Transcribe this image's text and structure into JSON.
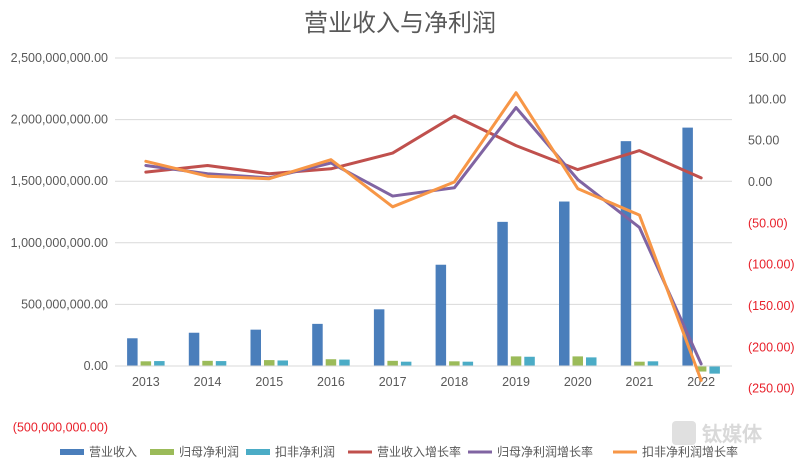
{
  "chart_data": {
    "type": "bar",
    "title": "营业收入与净利润",
    "categories": [
      "2013",
      "2014",
      "2015",
      "2016",
      "2017",
      "2018",
      "2019",
      "2020",
      "2021",
      "2022"
    ],
    "bar_series": [
      {
        "name": "营业收入",
        "color": "#4a7ebb",
        "axis": "left",
        "values": [
          225000000,
          270000000,
          295000000,
          342000000,
          460000000,
          822000000,
          1170000000,
          1335000000,
          1825000000,
          1935000000
        ]
      },
      {
        "name": "归母净利润",
        "color": "#9bbb59",
        "axis": "left",
        "values": [
          38000000,
          42000000,
          48000000,
          55000000,
          42000000,
          38000000,
          78000000,
          78000000,
          35000000,
          -45000000
        ]
      },
      {
        "name": "扣非净利润",
        "color": "#4bacc6",
        "axis": "left",
        "values": [
          40000000,
          40000000,
          45000000,
          52000000,
          35000000,
          35000000,
          75000000,
          70000000,
          38000000,
          -62000000
        ]
      }
    ],
    "line_series": [
      {
        "name": "营业收入增长率",
        "color": "#c0504d",
        "axis": "right",
        "values": [
          12,
          20,
          10,
          16,
          35,
          80,
          44,
          15,
          38,
          5
        ]
      },
      {
        "name": "归母净利润增长率",
        "color": "#8064a2",
        "axis": "right",
        "values": [
          20,
          10,
          5,
          23,
          -17,
          -7,
          90,
          3,
          -55,
          -220
        ]
      },
      {
        "name": "扣非净利润增长率",
        "color": "#f79646",
        "axis": "right",
        "values": [
          25,
          7,
          4,
          27,
          -30,
          0,
          108,
          -8,
          -40,
          -240
        ]
      }
    ],
    "left_axis": {
      "ylim": [
        -500000000,
        2500000000
      ],
      "ticks": [
        {
          "value": 2500000000,
          "label": "2,500,000,000.00"
        },
        {
          "value": 2000000000,
          "label": "2,000,000,000.00"
        },
        {
          "value": 1500000000,
          "label": "1,500,000,000.00"
        },
        {
          "value": 1000000000,
          "label": "1,000,000,000.00"
        },
        {
          "value": 500000000,
          "label": "500,000,000.00"
        },
        {
          "value": 0,
          "label": "0.00"
        },
        {
          "value": -500000000,
          "label": "(500,000,000.00)",
          "negative": true
        }
      ]
    },
    "right_axis": {
      "ylim": [
        -250,
        150
      ],
      "ticks": [
        {
          "value": 150,
          "label": "150.00"
        },
        {
          "value": 100,
          "label": "100.00"
        },
        {
          "value": 50,
          "label": "50.00"
        },
        {
          "value": 0,
          "label": "0.00"
        },
        {
          "value": -50,
          "label": "(50.00)",
          "negative": true
        },
        {
          "value": -100,
          "label": "(100.00)",
          "negative": true
        },
        {
          "value": -150,
          "label": "(150.00)",
          "negative": true
        },
        {
          "value": -200,
          "label": "(200.00)",
          "negative": true
        },
        {
          "value": -250,
          "label": "(250.00)",
          "negative": true
        }
      ]
    },
    "grid": true,
    "legend_position": "bottom",
    "watermark": "钛媒体"
  }
}
